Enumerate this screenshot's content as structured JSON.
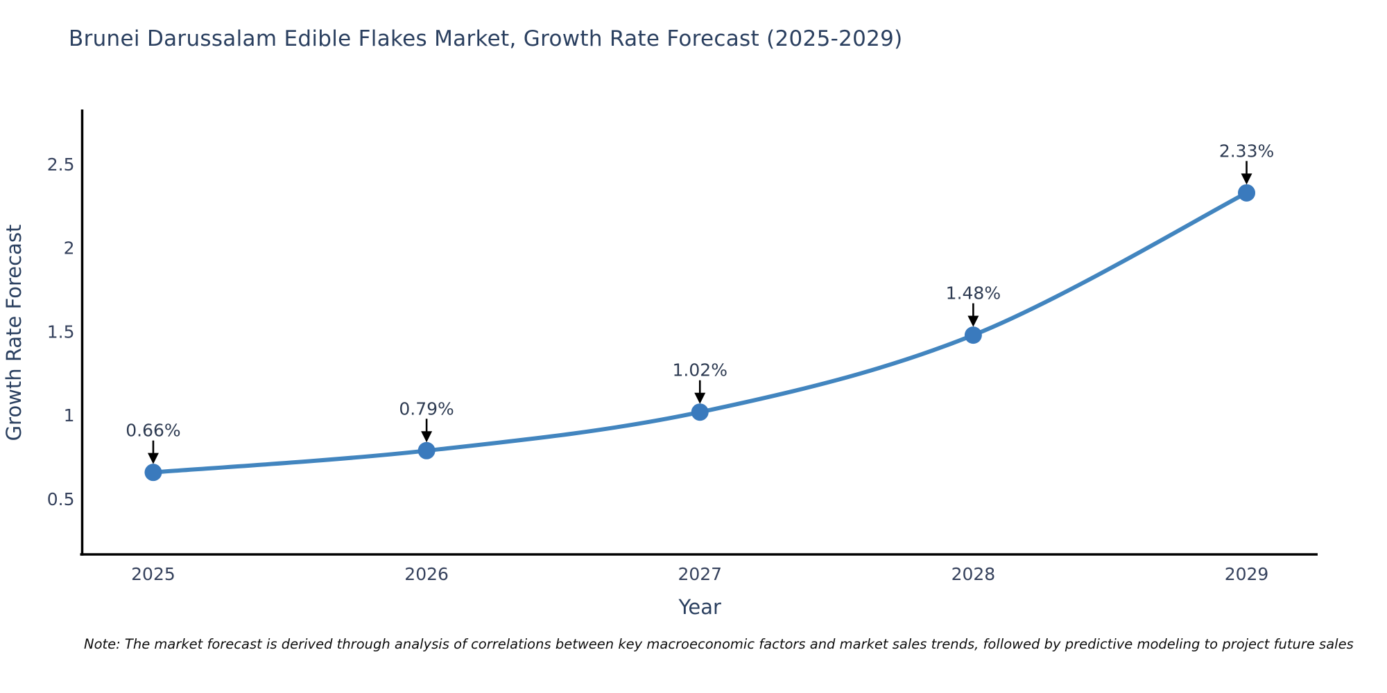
{
  "title": "Brunei Darussalam Edible Flakes Market, Growth Rate Forecast (2025-2029)",
  "note": "Note: The market forecast is derived through analysis of correlations between key macroeconomic factors and market sales trends, followed by predictive modeling to project future sales",
  "chart_data": {
    "type": "line",
    "title": "Brunei Darussalam Edible Flakes Market, Growth Rate Forecast (2025-2029)",
    "xlabel": "Year",
    "ylabel": "Growth Rate Forecast",
    "x": [
      2025,
      2026,
      2027,
      2028,
      2029
    ],
    "values": [
      0.66,
      0.79,
      1.02,
      1.48,
      2.33
    ],
    "point_labels": [
      "0.66%",
      "0.79%",
      "1.02%",
      "1.48%",
      "2.33%"
    ],
    "xtick_labels": [
      "2025",
      "2026",
      "2027",
      "2028",
      "2029"
    ],
    "yticks": [
      0.5,
      1,
      1.5,
      2,
      2.5
    ],
    "ytick_labels": [
      "0.5",
      "1",
      "1.5",
      "2",
      "2.5"
    ],
    "xlim": [
      2024.74,
      2029.26
    ],
    "ylim": [
      0.17,
      2.82
    ],
    "grid": false,
    "legend": "none",
    "line_smoothing": "spline",
    "line_color": "#4285bf",
    "marker_color": "#3a7abd",
    "axis_color": "#000000",
    "tick_label_color": "#35415c",
    "axis_title_color": "#2a3f5f",
    "annotation_text_color": "#2e3b52",
    "annotation_arrow_color": "#000000"
  }
}
